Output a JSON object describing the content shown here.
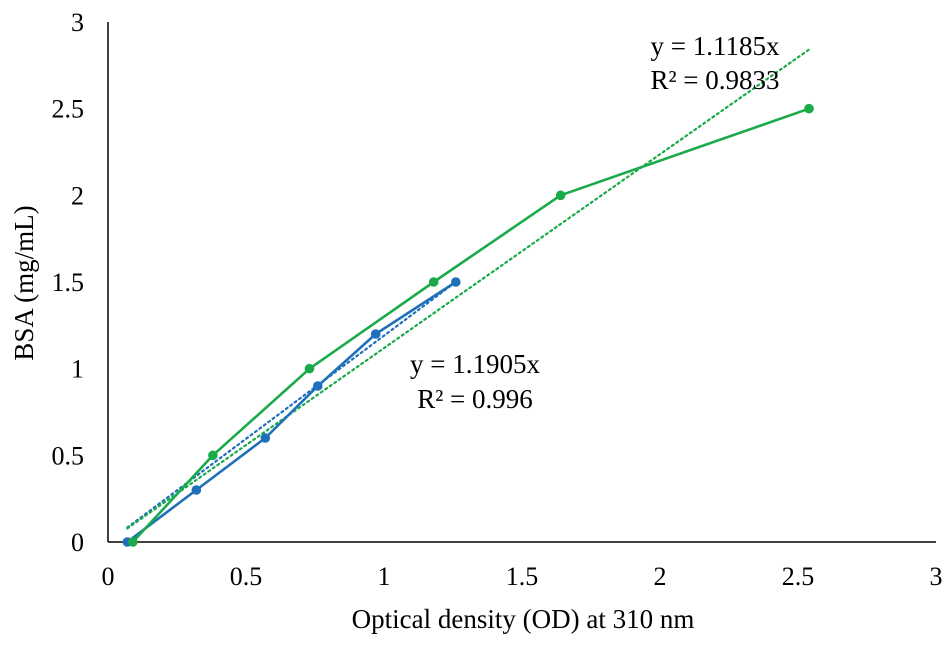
{
  "chart_data": {
    "type": "scatter",
    "title": "",
    "xlabel": "Optical density (OD) at 310 nm",
    "ylabel": "BSA (mg/mL)",
    "xlim": [
      0,
      3
    ],
    "ylim": [
      0,
      3
    ],
    "xticks": [
      "0",
      "0.5",
      "1",
      "1.5",
      "2",
      "2.5",
      "3"
    ],
    "yticks": [
      "0",
      "0.5",
      "1",
      "1.5",
      "2",
      "2.5",
      "3"
    ],
    "grid": false,
    "legend": "none",
    "series": [
      {
        "color": "#1f6fba",
        "x": [
          0.07,
          0.32,
          0.57,
          0.76,
          0.97,
          1.26
        ],
        "y": [
          0,
          0.3,
          0.6,
          0.9,
          1.2,
          1.5
        ],
        "trendline": {
          "slope": 1.1905,
          "r2": 0.996,
          "x_range": [
            0.07,
            1.26
          ]
        }
      },
      {
        "color": "#1aaa4a",
        "x": [
          0.09,
          0.38,
          0.73,
          1.18,
          1.64,
          2.54
        ],
        "y": [
          0,
          0.5,
          1.0,
          1.5,
          2.0,
          2.5
        ],
        "trendline": {
          "slope": 1.1185,
          "r2": 0.9833,
          "x_range": [
            0.07,
            2.54
          ]
        }
      }
    ],
    "annotations": [
      {
        "series": 0,
        "line1": "y = 1.1905x",
        "line2": "R² = 0.996"
      },
      {
        "series": 1,
        "line1": "y = 1.1185x",
        "line2": "R² = 0.9833"
      }
    ]
  }
}
